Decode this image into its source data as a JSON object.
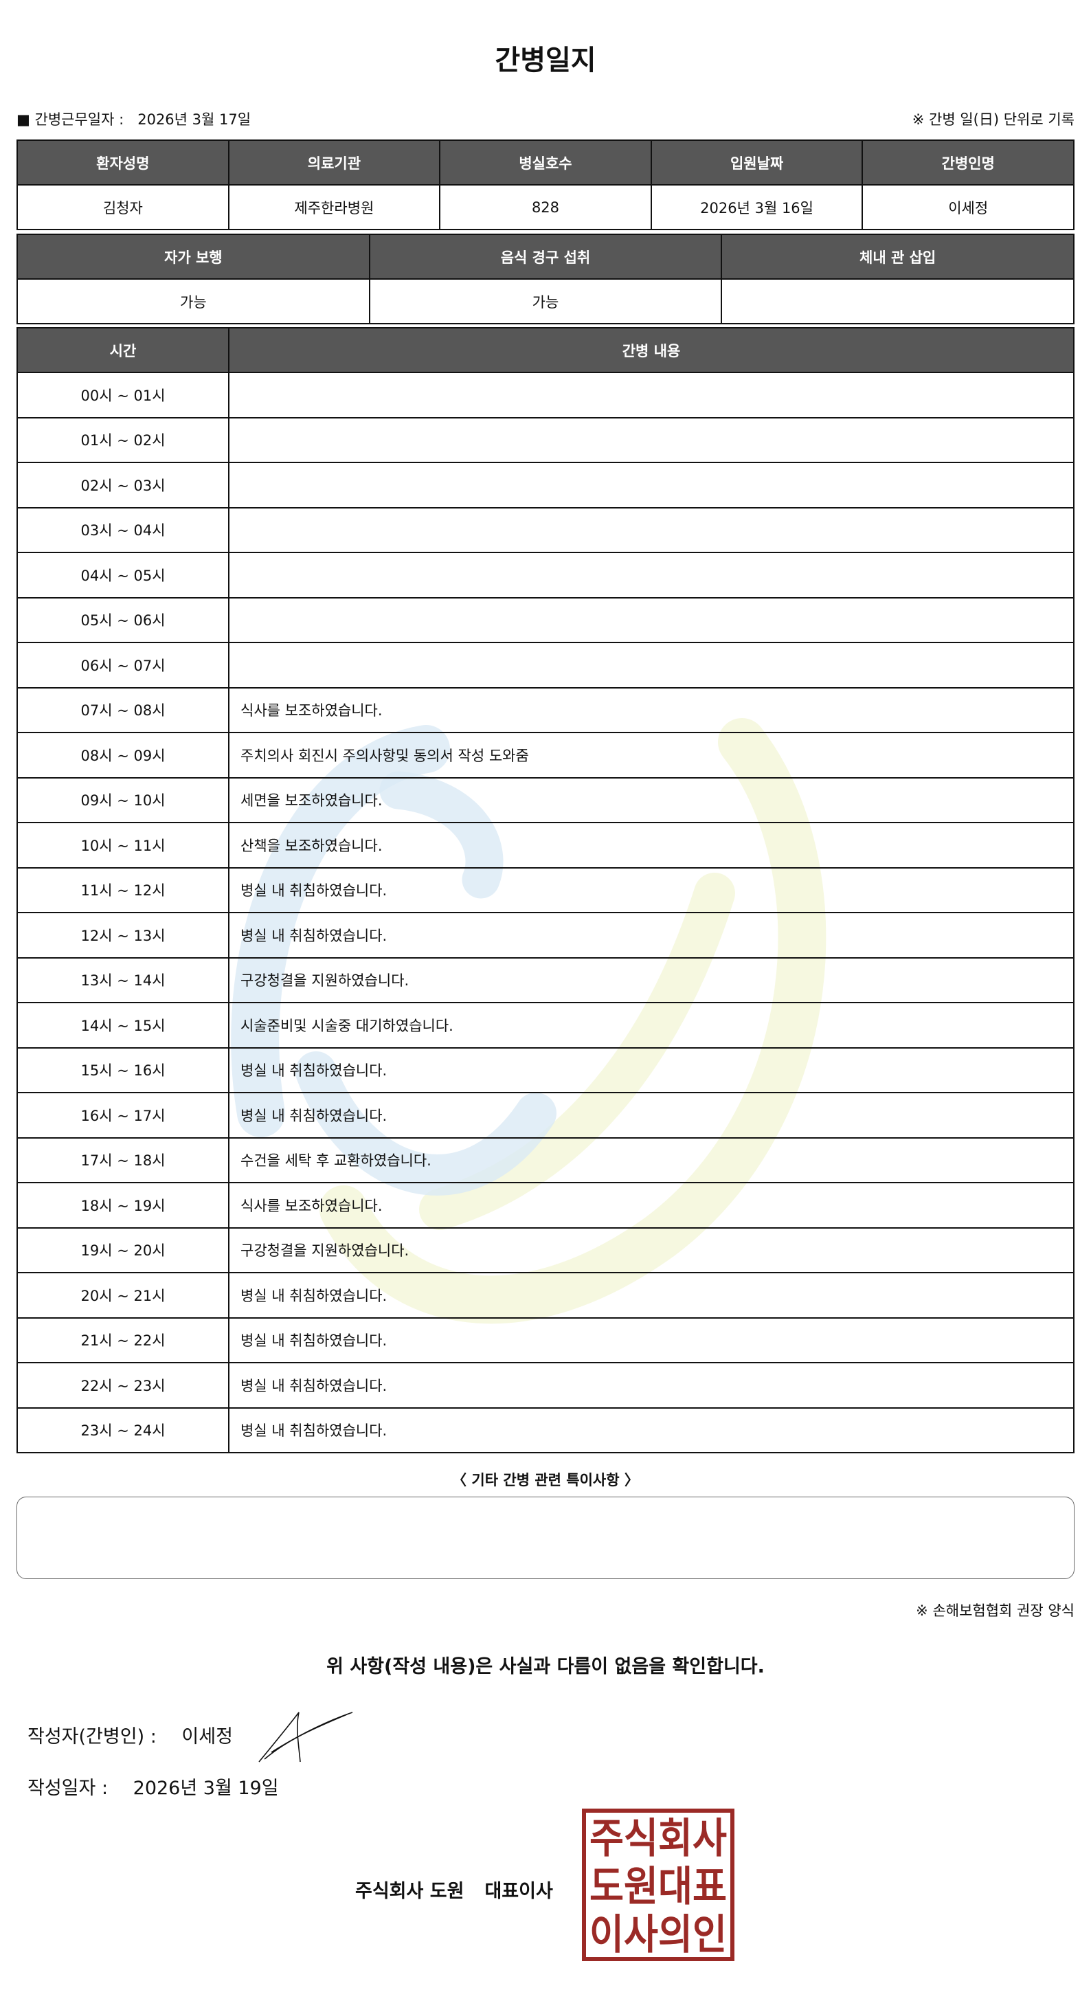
{
  "title": "간병일지",
  "meta": {
    "work_date_label": "■ 간병근무일자  :",
    "work_date": "2026년 3월 17일",
    "note": "※ 간병 일(日) 단위로 기록"
  },
  "patient_table": {
    "headers": [
      "환자성명",
      "의료기관",
      "병실호수",
      "입원날짜",
      "간병인명"
    ],
    "values": [
      "김청자",
      "제주한라병원",
      "828",
      "2026년 3월 16일",
      "이세정"
    ]
  },
  "status_table": {
    "headers": [
      "자가 보행",
      "음식 경구 섭취",
      "체내 관 삽입"
    ],
    "values": [
      "가능",
      "가능",
      ""
    ]
  },
  "log_table": {
    "headers": [
      "시간",
      "간병 내용"
    ],
    "rows": [
      {
        "time": "00시 ~ 01시",
        "content": ""
      },
      {
        "time": "01시 ~ 02시",
        "content": ""
      },
      {
        "time": "02시 ~ 03시",
        "content": ""
      },
      {
        "time": "03시 ~ 04시",
        "content": ""
      },
      {
        "time": "04시 ~ 05시",
        "content": ""
      },
      {
        "time": "05시 ~ 06시",
        "content": ""
      },
      {
        "time": "06시 ~ 07시",
        "content": ""
      },
      {
        "time": "07시 ~ 08시",
        "content": "식사를 보조하였습니다."
      },
      {
        "time": "08시 ~ 09시",
        "content": "주치의사 회진시 주의사항및 동의서 작성 도와줌"
      },
      {
        "time": "09시 ~ 10시",
        "content": "세면을 보조하였습니다."
      },
      {
        "time": "10시 ~ 11시",
        "content": "산책을 보조하였습니다."
      },
      {
        "time": "11시 ~ 12시",
        "content": "병실 내 취침하였습니다."
      },
      {
        "time": "12시 ~ 13시",
        "content": "병실 내 취침하였습니다."
      },
      {
        "time": "13시 ~ 14시",
        "content": "구강청결을 지원하였습니다."
      },
      {
        "time": "14시 ~ 15시",
        "content": "시술준비및 시술중 대기하였습니다."
      },
      {
        "time": "15시 ~ 16시",
        "content": "병실 내 취침하였습니다."
      },
      {
        "time": "16시 ~ 17시",
        "content": "병실 내 취침하였습니다."
      },
      {
        "time": "17시 ~ 18시",
        "content": "수건을 세탁 후 교환하였습니다."
      },
      {
        "time": "18시 ~ 19시",
        "content": "식사를 보조하였습니다."
      },
      {
        "time": "19시 ~ 20시",
        "content": "구강청결을 지원하였습니다."
      },
      {
        "time": "20시 ~ 21시",
        "content": "병실 내 취침하였습니다."
      },
      {
        "time": "21시 ~ 22시",
        "content": "병실 내 취침하였습니다."
      },
      {
        "time": "22시 ~ 23시",
        "content": "병실 내 취침하였습니다."
      },
      {
        "time": "23시 ~ 24시",
        "content": "병실 내 취침하였습니다."
      }
    ]
  },
  "notes": {
    "label": "〈 기타 간병 관련 특이사항 〉",
    "value": ""
  },
  "form_note": "※ 손해보험협회 권장 양식",
  "confirm_text": "위 사항(작성 내용)은 사실과 다름이 없음을 확인합니다.",
  "writer": {
    "label": "작성자(간병인) :",
    "name": "이세정"
  },
  "written_date": {
    "label": "작성일자 :",
    "value": "2026년 3월 19일"
  },
  "company": {
    "name": "주식회사 도원",
    "title": "대표이사"
  },
  "stamp": {
    "text": [
      "주식회사",
      "도원대표",
      "이사의인"
    ],
    "color": "#9b2a26"
  },
  "colors": {
    "header_bg": "#575757",
    "watermark_blue": "#d6e8f5",
    "watermark_yellow": "#f5f7dc"
  }
}
